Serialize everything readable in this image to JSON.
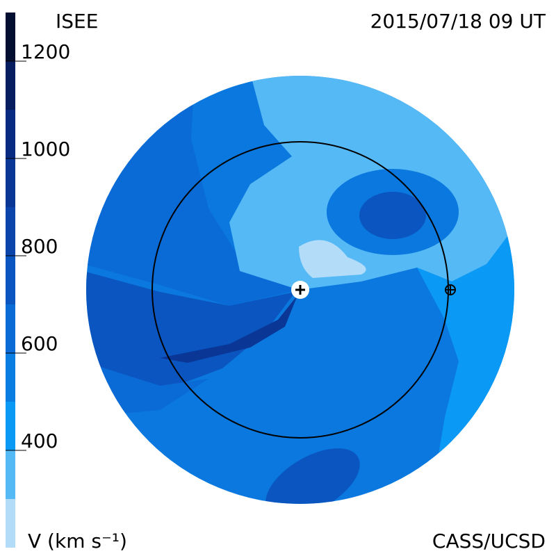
{
  "chart_data": {
    "type": "contour",
    "title": "ISEE",
    "subtitle": "2015/07/18 09 UT",
    "credit": "CASS/UCSD",
    "colorbar_label": "V (km s⁻¹)",
    "ylim": [
      200,
      1300
    ],
    "yticks": [
      400,
      600,
      800,
      1000,
      1200
    ],
    "levels": [
      200,
      300,
      400,
      500,
      600,
      700,
      800,
      900,
      1000,
      1100,
      1200,
      1300
    ],
    "colors": [
      "#b3dcf8",
      "#55b9f6",
      "#0a9af5",
      "#0a7de2",
      "#0a6ad6",
      "#0b55c0",
      "#0b45ac",
      "#0a3696",
      "#082a80",
      "#061d60",
      "#040e30"
    ]
  }
}
